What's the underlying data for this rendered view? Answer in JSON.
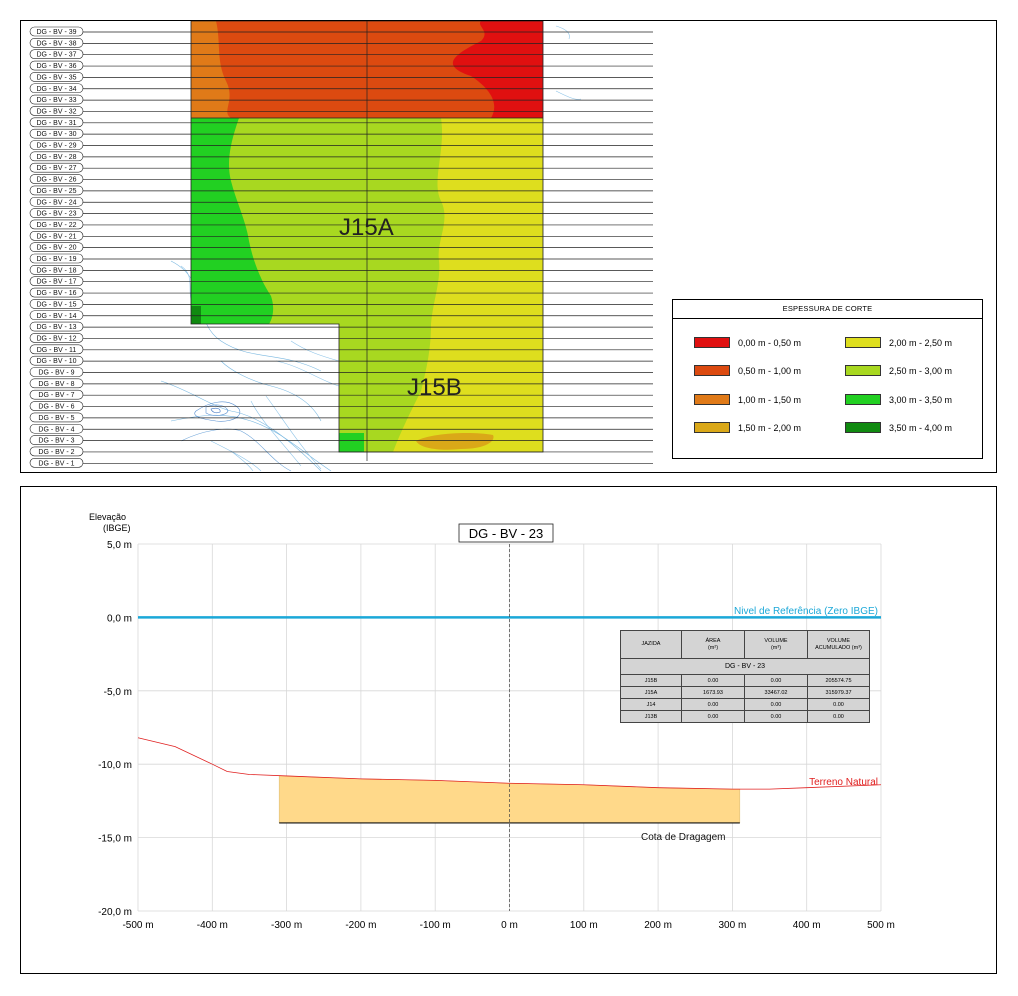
{
  "map": {
    "section_labels": [
      "DG - BV - 39",
      "DG - BV - 38",
      "DG - BV - 37",
      "DG - BV - 36",
      "DG - BV - 35",
      "DG - BV - 34",
      "DG - BV - 33",
      "DG - BV - 32",
      "DG - BV - 31",
      "DG - BV - 30",
      "DG - BV - 29",
      "DG - BV - 28",
      "DG - BV - 27",
      "DG - BV - 26",
      "DG - BV - 25",
      "DG - BV - 24",
      "DG - BV - 23",
      "DG - BV - 22",
      "DG - BV - 21",
      "DG - BV - 20",
      "DG - BV - 19",
      "DG - BV - 18",
      "DG - BV - 17",
      "DG - BV - 16",
      "DG - BV - 15",
      "DG - BV - 14",
      "DG - BV - 13",
      "DG - BV - 12",
      "DG - BV - 11",
      "DG - BV - 10",
      "DG - BV - 9",
      "DG - BV - 8",
      "DG - BV - 7",
      "DG - BV - 6",
      "DG - BV - 5",
      "DG - BV - 4",
      "DG - BV - 3",
      "DG - BV - 2",
      "DG - BV - 1"
    ],
    "area_labels": {
      "a": "J15A",
      "b": "J15B"
    },
    "colors": {
      "red": "#e01010",
      "red_orange": "#dc4a10",
      "orange": "#e07a18",
      "amber": "#daa818",
      "yellow": "#dede1e",
      "yellow_green": "#a8d820",
      "green": "#22d022",
      "dark_green": "#108a10",
      "contour": "#7ab8e0"
    },
    "legend": {
      "title": "ESPESSURA DE CORTE",
      "items": [
        {
          "label": "0,00 m  -  0,50 m",
          "color": "#e01010"
        },
        {
          "label": "0,50 m  - 1,00 m",
          "color": "#dc4a10"
        },
        {
          "label": "1,00 m  -  1,50 m",
          "color": "#e07a18"
        },
        {
          "label": "1,50 m  - 2,00 m",
          "color": "#daa818"
        },
        {
          "label": "2,00 m  -  2,50 m",
          "color": "#dede1e"
        },
        {
          "label": "2,50 m  -  3,00 m",
          "color": "#a8d820"
        },
        {
          "label": "3,00 m  -  3,50 m",
          "color": "#22d022"
        },
        {
          "label": "3,50 m  -  4,00 m",
          "color": "#108a10"
        }
      ]
    }
  },
  "section": {
    "title": "DG - BV - 23",
    "y_axis_title": [
      "Elevação",
      "(IBGE)"
    ],
    "y_ticks": [
      "5,0 m",
      "0,0 m",
      "-5,0 m",
      "-10,0 m",
      "-15,0 m",
      "-20,0 m"
    ],
    "x_ticks": [
      "-500 m",
      "-400 m",
      "-300 m",
      "-200 m",
      "-100 m",
      "0 m",
      "100 m",
      "200 m",
      "300 m",
      "400 m",
      "500 m"
    ],
    "labels": {
      "reference": "Nivel de Referência (Zero IBGE)",
      "terrain": "Terreno Natural",
      "dredge": "Cota de Dragagem"
    },
    "colors": {
      "reference": "#1ba8d8",
      "terrain": "#e02020",
      "fill": "#ffd98a",
      "grid": "#d8d8d8"
    },
    "table": {
      "title": "DG - BV - 23",
      "headers": [
        "JAZIDA",
        "ÁREA\n(m²)",
        "VOLUME\n(m³)",
        "VOLUME\nACUMULADO (m³)"
      ],
      "rows": [
        [
          "J15B",
          "0.00",
          "0.00",
          "205574.75"
        ],
        [
          "J15A",
          "1673.93",
          "33467.02",
          "315979.37"
        ],
        [
          "J14",
          "0.00",
          "0.00",
          "0.00"
        ],
        [
          "J13B",
          "0.00",
          "0.00",
          "0.00"
        ]
      ]
    }
  },
  "chart_data": {
    "type": "line",
    "title": "DG - BV - 23",
    "xlabel": "",
    "ylabel": "Elevação (IBGE)",
    "xlim": [
      -500,
      500
    ],
    "ylim": [
      -20,
      5
    ],
    "grid": true,
    "series": [
      {
        "name": "Terreno Natural",
        "x": [
          -500,
          -450,
          -400,
          -380,
          -350,
          -300,
          -200,
          -100,
          0,
          100,
          200,
          300,
          350,
          400,
          500
        ],
        "y": [
          -8.2,
          -8.8,
          -10.0,
          -10.5,
          -10.7,
          -10.8,
          -11.0,
          -11.1,
          -11.3,
          -11.4,
          -11.6,
          -11.7,
          -11.7,
          -11.6,
          -11.4
        ]
      },
      {
        "name": "Nivel de Referência (Zero IBGE)",
        "x": [
          -500,
          500
        ],
        "y": [
          0.0,
          0.0
        ]
      },
      {
        "name": "Cota de Dragagem",
        "x": [
          -310,
          310
        ],
        "y": [
          -14.0,
          -14.0
        ]
      }
    ]
  }
}
